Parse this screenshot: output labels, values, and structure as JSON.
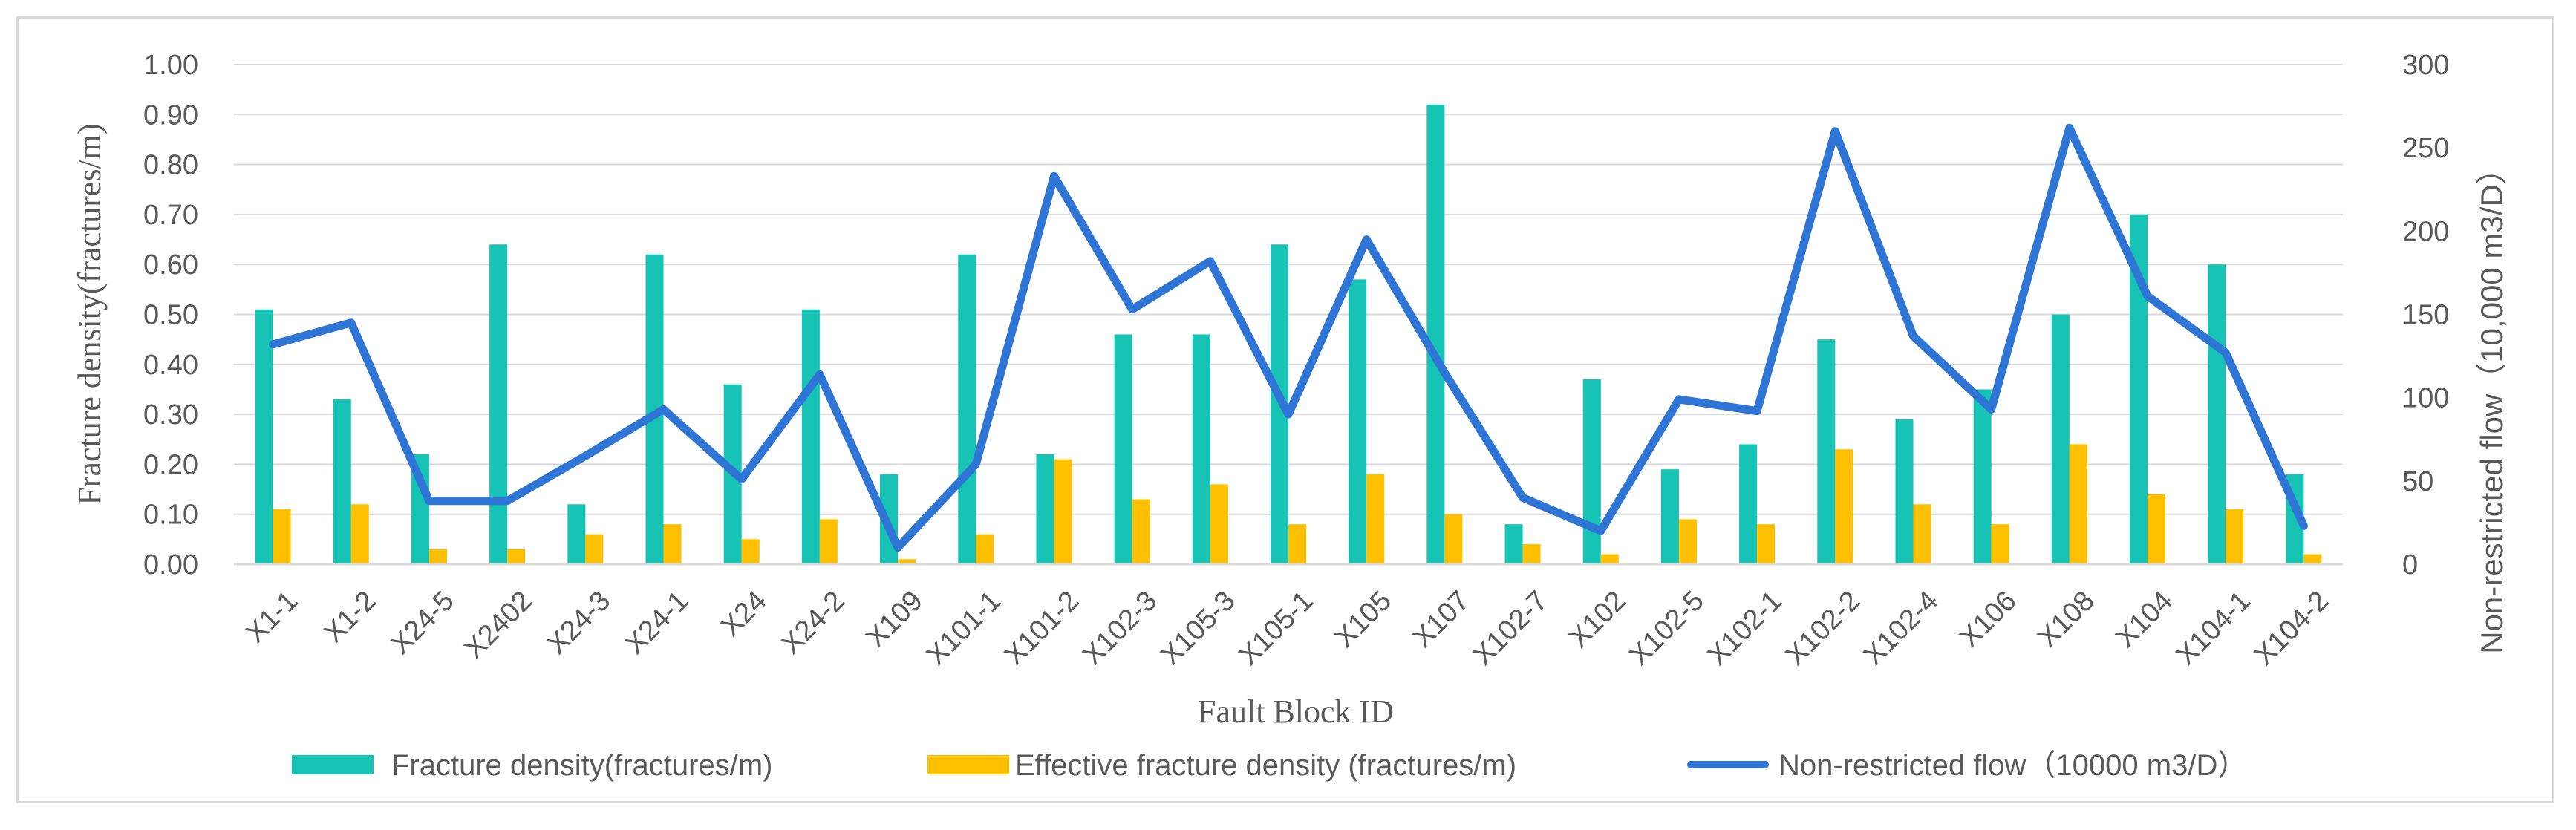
{
  "chart_data": {
    "type": "bar",
    "title": "",
    "xlabel": "Fault Block ID",
    "ylabel": "Fracture density(fractures/m)",
    "y2label": "Non-restricted flow（10,000 m3/D）",
    "ylim": [
      0,
      1.0
    ],
    "y2lim": [
      0,
      300
    ],
    "yticks": [
      "0.00",
      "0.10",
      "0.20",
      "0.30",
      "0.40",
      "0.50",
      "0.60",
      "0.70",
      "0.80",
      "0.90",
      "1.00"
    ],
    "y2ticks": [
      "0",
      "50",
      "100",
      "150",
      "200",
      "250",
      "300"
    ],
    "grid": true,
    "legend_position": "bottom",
    "categories": [
      "X1-1",
      "X1-2",
      "X24-5",
      "X2402",
      "X24-3",
      "X24-1",
      "X24",
      "X24-2",
      "X109",
      "X101-1",
      "X101-2",
      "X102-3",
      "X105-3",
      "X105-1",
      "X105",
      "X107",
      "X102-7",
      "X102",
      "X102-5",
      "X102-1",
      "X102-2",
      "X102-4",
      "X106",
      "X108",
      "X104",
      "X104-1",
      "X104-2"
    ],
    "series": [
      {
        "name": "Fracture density(fractures/m)",
        "kind": "bar",
        "axis": "left",
        "color": "#16c3b4",
        "values": [
          0.51,
          0.33,
          0.22,
          0.64,
          0.12,
          0.62,
          0.36,
          0.51,
          0.18,
          0.62,
          0.22,
          0.46,
          0.46,
          0.64,
          0.57,
          0.92,
          0.08,
          0.37,
          0.19,
          0.24,
          0.45,
          0.29,
          0.35,
          0.5,
          0.7,
          0.6,
          0.18
        ]
      },
      {
        "name": "Effective fracture density (fractures/m)",
        "kind": "bar",
        "axis": "left",
        "color": "#ffc000",
        "values": [
          0.11,
          0.12,
          0.03,
          0.03,
          0.06,
          0.08,
          0.05,
          0.09,
          0.01,
          0.06,
          0.21,
          0.13,
          0.16,
          0.08,
          0.18,
          0.1,
          0.04,
          0.02,
          0.09,
          0.08,
          0.23,
          0.12,
          0.08,
          0.24,
          0.14,
          0.11,
          0.02
        ]
      },
      {
        "name": "Non-restricted flow（10000 m3/D）",
        "kind": "line",
        "axis": "right",
        "color": "#2e75d6",
        "values": [
          132,
          145,
          38,
          38,
          65,
          93,
          51,
          114,
          10,
          60,
          233,
          153,
          182,
          90,
          195,
          115,
          40,
          20,
          99,
          92,
          260,
          137,
          93,
          262,
          161,
          127,
          23
        ]
      }
    ]
  }
}
